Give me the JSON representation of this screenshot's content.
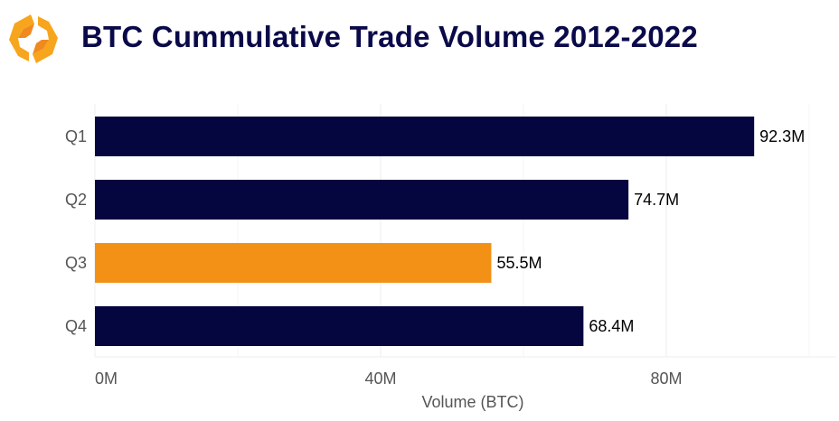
{
  "title": "BTC Cummulative Trade Volume 2012-2022",
  "logo": {
    "icon": "hexagon-logo-icon",
    "colors": [
      "#f7a51c",
      "#f08a1e"
    ]
  },
  "chart_data": {
    "type": "bar",
    "orientation": "horizontal",
    "title": "BTC Cummulative Trade Volume 2012-2022",
    "categories": [
      "Q1",
      "Q2",
      "Q3",
      "Q4"
    ],
    "values": [
      92.3,
      74.7,
      55.5,
      68.4
    ],
    "data_labels": [
      "92.3M",
      "74.7M",
      "55.5M",
      "68.4M"
    ],
    "colors": [
      "#05053f",
      "#05053f",
      "#f29116",
      "#05053f"
    ],
    "xlabel": "Volume (BTC)",
    "ylabel": "",
    "xlim": [
      0,
      104
    ],
    "xticks": [
      0,
      40,
      80
    ],
    "xtick_labels": [
      "0M",
      "40M",
      "80M"
    ],
    "grid": true,
    "legend": "none"
  }
}
